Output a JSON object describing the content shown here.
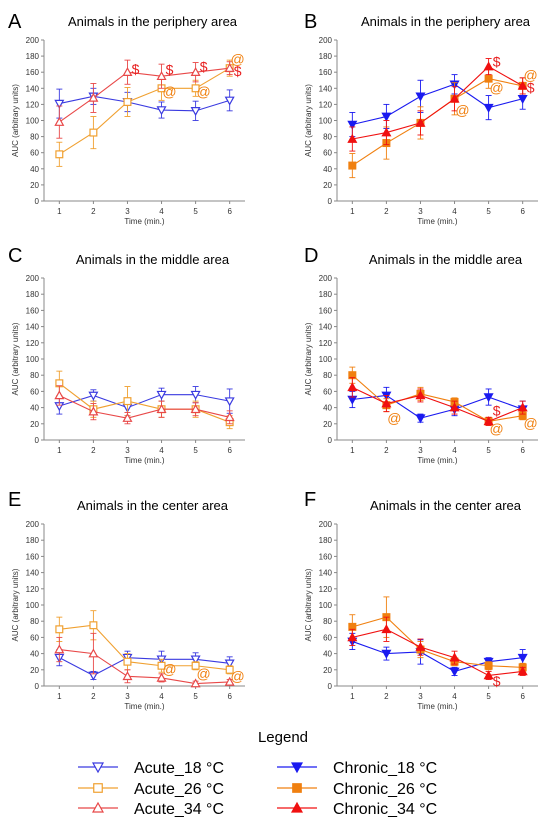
{
  "colors": {
    "acute_18": "#3a3ae0",
    "acute_26": "#f0a030",
    "acute_34": "#e84848",
    "chronic_18": "#1a1af0",
    "chronic_26": "#f08010",
    "chronic_34": "#f01010",
    "annotation_dollar": "#e82020",
    "annotation_at": "#f08010"
  },
  "legend": {
    "title": "Legend",
    "entries": [
      {
        "key": "acute_18",
        "label": "Acute_18 °C",
        "marker": "triangle-down-open"
      },
      {
        "key": "chronic_18",
        "label": "Chronic_18 °C",
        "marker": "triangle-down-filled"
      },
      {
        "key": "acute_26",
        "label": "Acute_26 °C",
        "marker": "square-open"
      },
      {
        "key": "chronic_26",
        "label": "Chronic_26 °C",
        "marker": "square-filled"
      },
      {
        "key": "acute_34",
        "label": "Acute_34 °C",
        "marker": "triangle-up-open"
      },
      {
        "key": "chronic_34",
        "label": "Chronic_34 °C",
        "marker": "triangle-up-filled"
      }
    ]
  },
  "chart_data": [
    {
      "panel": "A",
      "type": "line",
      "title": "Animals in the periphery area",
      "xlabel": "Time (min.)",
      "ylabel": "AUC (arbitrary units)",
      "x": [
        1,
        2,
        3,
        4,
        5,
        6
      ],
      "ylim": [
        0,
        200
      ],
      "yticks": [
        "0",
        "20",
        "40",
        "60",
        "80",
        "100",
        "120",
        "140",
        "160",
        "180",
        "200"
      ],
      "xticks": [
        "1",
        "2",
        "3",
        "4",
        "5",
        "6"
      ],
      "series": [
        {
          "key": "acute_18",
          "values": [
            121,
            130,
            123,
            113,
            112,
            125
          ],
          "errors": [
            18,
            10,
            12,
            10,
            12,
            13
          ]
        },
        {
          "key": "acute_26",
          "values": [
            58,
            85,
            123,
            140,
            140,
            165
          ],
          "errors": [
            15,
            20,
            18,
            15,
            10,
            10
          ]
        },
        {
          "key": "acute_34",
          "values": [
            98,
            128,
            160,
            155,
            160,
            165
          ],
          "errors": [
            20,
            18,
            15,
            15,
            12,
            8
          ]
        }
      ],
      "annotations": [
        {
          "symbol": "$",
          "x": 3,
          "y": 163
        },
        {
          "symbol": "$",
          "x": 4,
          "y": 162
        },
        {
          "symbol": "$",
          "x": 5,
          "y": 166
        },
        {
          "symbol": "$",
          "x": 6,
          "y": 160
        },
        {
          "symbol": "@",
          "x": 4,
          "y": 135
        },
        {
          "symbol": "@",
          "x": 5,
          "y": 135
        },
        {
          "symbol": "@",
          "x": 6,
          "y": 175
        }
      ]
    },
    {
      "panel": "B",
      "type": "line",
      "title": "Animals in the periphery area",
      "xlabel": "Time (min.)",
      "ylabel": "AUC (arbitrary units)",
      "x": [
        1,
        2,
        3,
        4,
        5,
        6
      ],
      "ylim": [
        0,
        200
      ],
      "yticks": [
        "0",
        "20",
        "40",
        "60",
        "80",
        "100",
        "120",
        "140",
        "160",
        "180",
        "200"
      ],
      "xticks": [
        "1",
        "2",
        "3",
        "4",
        "5",
        "6"
      ],
      "series": [
        {
          "key": "chronic_18",
          "values": [
            95,
            105,
            130,
            145,
            116,
            127
          ],
          "errors": [
            15,
            15,
            20,
            12,
            15,
            13
          ]
        },
        {
          "key": "chronic_26",
          "values": [
            44,
            72,
            97,
            127,
            152,
            143
          ],
          "errors": [
            15,
            20,
            20,
            20,
            12,
            10
          ]
        },
        {
          "key": "chronic_34",
          "values": [
            77,
            85,
            97,
            127,
            167,
            143
          ],
          "errors": [
            15,
            15,
            15,
            15,
            10,
            10
          ]
        }
      ],
      "annotations": [
        {
          "symbol": "$",
          "x": 5,
          "y": 172
        },
        {
          "symbol": "$",
          "x": 6,
          "y": 140
        },
        {
          "symbol": "@",
          "x": 4,
          "y": 112
        },
        {
          "symbol": "@",
          "x": 5,
          "y": 140
        },
        {
          "symbol": "@",
          "x": 6,
          "y": 155
        }
      ]
    },
    {
      "panel": "C",
      "type": "line",
      "title": "Animals in the middle area",
      "xlabel": "Time (min.)",
      "ylabel": "AUC (arbitrary units)",
      "x": [
        1,
        2,
        3,
        4,
        5,
        6
      ],
      "ylim": [
        0,
        200
      ],
      "yticks": [
        "0",
        "20",
        "40",
        "60",
        "80",
        "100",
        "120",
        "140",
        "160",
        "180",
        "200"
      ],
      "xticks": [
        "1",
        "2",
        "3",
        "4",
        "5",
        "6"
      ],
      "series": [
        {
          "key": "acute_18",
          "values": [
            42,
            55,
            40,
            56,
            56,
            48
          ],
          "errors": [
            10,
            7,
            10,
            8,
            10,
            15
          ]
        },
        {
          "key": "acute_26",
          "values": [
            70,
            38,
            48,
            38,
            38,
            22
          ],
          "errors": [
            15,
            10,
            18,
            10,
            10,
            8
          ]
        },
        {
          "key": "acute_34",
          "values": [
            55,
            35,
            27,
            38,
            38,
            28
          ],
          "errors": [
            12,
            10,
            7,
            10,
            8,
            8
          ]
        }
      ],
      "annotations": []
    },
    {
      "panel": "D",
      "type": "line",
      "title": "Animals in the middle area",
      "xlabel": "Time (min.)",
      "ylabel": "AUC (arbitrary units)",
      "x": [
        1,
        2,
        3,
        4,
        5,
        6
      ],
      "ylim": [
        0,
        200
      ],
      "yticks": [
        "0",
        "20",
        "40",
        "60",
        "80",
        "100",
        "120",
        "140",
        "160",
        "180",
        "200"
      ],
      "xticks": [
        "1",
        "2",
        "3",
        "4",
        "5",
        "6"
      ],
      "series": [
        {
          "key": "chronic_18",
          "values": [
            50,
            55,
            27,
            38,
            53,
            38
          ],
          "errors": [
            10,
            10,
            5,
            8,
            10,
            10
          ]
        },
        {
          "key": "chronic_26",
          "values": [
            80,
            43,
            57,
            47,
            23,
            30
          ],
          "errors": [
            10,
            8,
            8,
            5,
            5,
            5
          ]
        },
        {
          "key": "chronic_34",
          "values": [
            65,
            45,
            55,
            40,
            23,
            40
          ],
          "errors": [
            12,
            10,
            8,
            8,
            5,
            8
          ]
        }
      ],
      "annotations": [
        {
          "symbol": "@",
          "x": 2,
          "y": 26
        },
        {
          "symbol": "$",
          "x": 5,
          "y": 35
        },
        {
          "symbol": "@",
          "x": 5,
          "y": 13
        },
        {
          "symbol": "@",
          "x": 6,
          "y": 20
        }
      ]
    },
    {
      "panel": "E",
      "type": "line",
      "title": "Animals in the center area",
      "xlabel": "Time (min.)",
      "ylabel": "AUC (arbitrary units)",
      "x": [
        1,
        2,
        3,
        4,
        5,
        6
      ],
      "ylim": [
        0,
        200
      ],
      "yticks": [
        "0",
        "20",
        "40",
        "60",
        "80",
        "100",
        "120",
        "140",
        "160",
        "180",
        "200"
      ],
      "xticks": [
        "1",
        "2",
        "3",
        "4",
        "5",
        "6"
      ],
      "series": [
        {
          "key": "acute_18",
          "values": [
            35,
            13,
            35,
            33,
            33,
            28
          ],
          "errors": [
            10,
            5,
            8,
            10,
            8,
            8
          ]
        },
        {
          "key": "acute_26",
          "values": [
            70,
            75,
            30,
            25,
            25,
            20
          ],
          "errors": [
            15,
            18,
            10,
            8,
            5,
            5
          ]
        },
        {
          "key": "acute_34",
          "values": [
            45,
            40,
            12,
            10,
            3,
            5
          ],
          "errors": [
            15,
            25,
            8,
            5,
            3,
            3
          ]
        }
      ],
      "annotations": [
        {
          "symbol": "@",
          "x": 4,
          "y": 20
        },
        {
          "symbol": "@",
          "x": 5,
          "y": 14
        },
        {
          "symbol": "@",
          "x": 6,
          "y": 11
        }
      ]
    },
    {
      "panel": "F",
      "type": "line",
      "title": "Animals in the center area",
      "xlabel": "Time (min.)",
      "ylabel": "AUC (arbitrary units)",
      "x": [
        1,
        2,
        3,
        4,
        5,
        6
      ],
      "ylim": [
        0,
        200
      ],
      "yticks": [
        "0",
        "20",
        "40",
        "60",
        "80",
        "100",
        "120",
        "140",
        "160",
        "180",
        "200"
      ],
      "xticks": [
        "1",
        "2",
        "3",
        "4",
        "5",
        "6"
      ],
      "series": [
        {
          "key": "chronic_18",
          "values": [
            55,
            40,
            42,
            18,
            30,
            35
          ],
          "errors": [
            10,
            8,
            15,
            5,
            5,
            10
          ]
        },
        {
          "key": "chronic_26",
          "values": [
            73,
            85,
            45,
            30,
            25,
            23
          ],
          "errors": [
            15,
            25,
            10,
            5,
            5,
            5
          ]
        },
        {
          "key": "chronic_34",
          "values": [
            60,
            70,
            48,
            35,
            13,
            18
          ],
          "errors": [
            10,
            15,
            10,
            8,
            5,
            5
          ]
        }
      ],
      "annotations": [
        {
          "symbol": "$",
          "x": 5,
          "y": 5
        }
      ]
    }
  ]
}
